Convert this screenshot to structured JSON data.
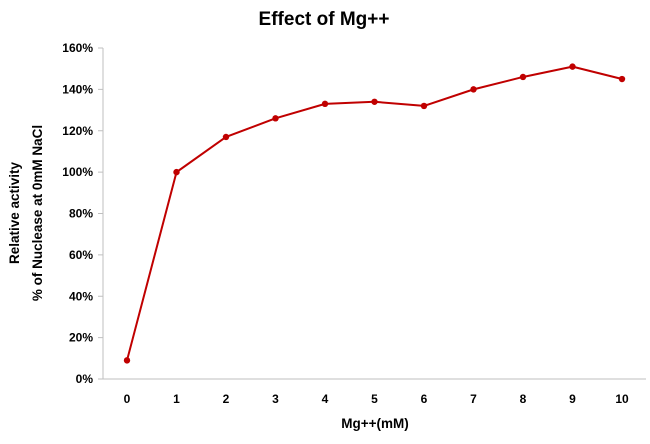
{
  "chart_data": {
    "type": "line",
    "title": "Effect of Mg++",
    "xlabel": "Mg++(mM)",
    "ylabel_line1": "Relative activity",
    "ylabel_line2": "% of Nuclease at 0mM NaCl",
    "x": [
      0,
      1,
      2,
      3,
      4,
      5,
      6,
      7,
      8,
      9,
      10
    ],
    "x_tick_labels": [
      "0",
      "1",
      "2",
      "3",
      "4",
      "5",
      "6",
      "7",
      "8",
      "9",
      "10"
    ],
    "ylim": [
      0,
      1.6
    ],
    "y_ticks": [
      0,
      0.2,
      0.4,
      0.6,
      0.8,
      1.0,
      1.2,
      1.4,
      1.6
    ],
    "y_tick_labels": [
      "0%",
      "20%",
      "40%",
      "60%",
      "80%",
      "100%",
      "120%",
      "140%",
      "160%"
    ],
    "series": [
      {
        "name": "Relative activity",
        "color": "#C00000",
        "values": [
          0.09,
          1.0,
          1.17,
          1.26,
          1.33,
          1.34,
          1.32,
          1.4,
          1.46,
          1.51,
          1.45
        ]
      }
    ],
    "grid": false,
    "legend": "none"
  }
}
